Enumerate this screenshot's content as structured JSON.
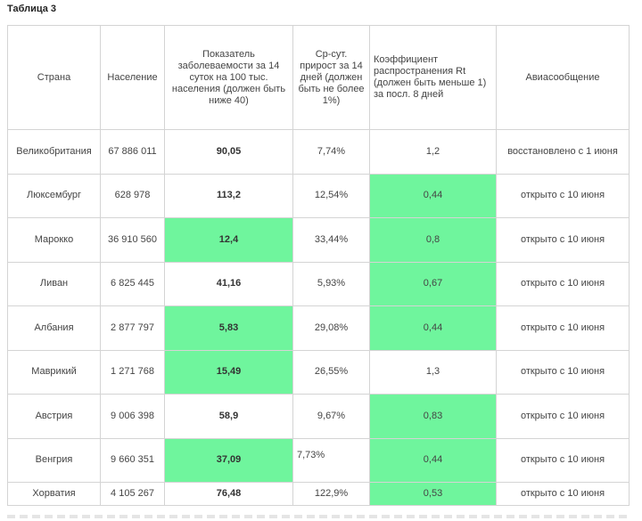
{
  "title": "Таблица 3",
  "headers": {
    "country": "Страна",
    "population": "Население",
    "incidence": "Показатель заболеваемости за 14 суток на 100 тыс. населения (должен быть ниже 40)",
    "growth": "Ср-сут. прирост за 14 дней (должен быть не более 1%)",
    "coefficient": "Коэффициент распространения Rt (должен быть меньше 1) за посл. 8 дней",
    "air": "Авиасообщение"
  },
  "rows": [
    {
      "country": "Великобритания",
      "population": "67 886 011",
      "incidence": "90,05",
      "growth": "7,74%",
      "rt": "1,2",
      "air": "восстановлено с 1 июня"
    },
    {
      "country": "Люксембург",
      "population": "628 978",
      "incidence": "113,2",
      "growth": "12,54%",
      "rt": "0,44",
      "air": "открыто с 10 июня"
    },
    {
      "country": "Марокко",
      "population": "36 910 560",
      "incidence": "12,4",
      "growth": "33,44%",
      "rt": "0,8",
      "air": "открыто с 10 июня"
    },
    {
      "country": "Ливан",
      "population": "6 825 445",
      "incidence": "41,16",
      "growth": "5,93%",
      "rt": "0,67",
      "air": "открыто с 10 июня"
    },
    {
      "country": "Албания",
      "population": "2 877 797",
      "incidence": "5,83",
      "growth": "29,08%",
      "rt": "0,44",
      "air": "открыто с 10 июня"
    },
    {
      "country": "Маврикий",
      "population": "1 271 768",
      "incidence": "15,49",
      "growth": "26,55%",
      "rt": "1,3",
      "air": "открыто с 10 июня"
    },
    {
      "country": "Австрия",
      "population": "9 006 398",
      "incidence": "58,9",
      "growth": "9,67%",
      "rt": "0,83",
      "air": "открыто с 10 июня"
    },
    {
      "country": "Венгрия",
      "population": "9 660 351",
      "incidence": "37,09",
      "growth": "7,73%",
      "rt": "0,44",
      "air": "открыто с 10 июня"
    },
    {
      "country": "Хорватия",
      "population": "4 105 267",
      "incidence": "76,48",
      "growth": "122,9%",
      "rt": "0,53",
      "air": "открыто с 10 июня"
    }
  ],
  "colors": {
    "highlight": "#6ff59d",
    "border": "#d4d4d4"
  }
}
